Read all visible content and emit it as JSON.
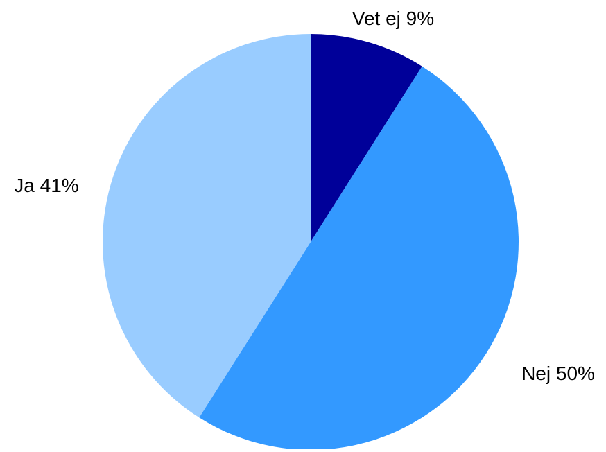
{
  "chart_data": {
    "type": "pie",
    "title": "",
    "slices": [
      {
        "label": "Vet ej",
        "value": 9,
        "display": "Vet ej 9%",
        "color": "#000099"
      },
      {
        "label": "Nej",
        "value": 50,
        "display": "Nej 50%",
        "color": "#3399FF"
      },
      {
        "label": "Ja",
        "value": 41,
        "display": "Ja 41%",
        "color": "#99CCFF"
      }
    ],
    "start_angle_deg": 0,
    "direction": "clockwise",
    "legend": "none",
    "data_labels": "outside"
  }
}
